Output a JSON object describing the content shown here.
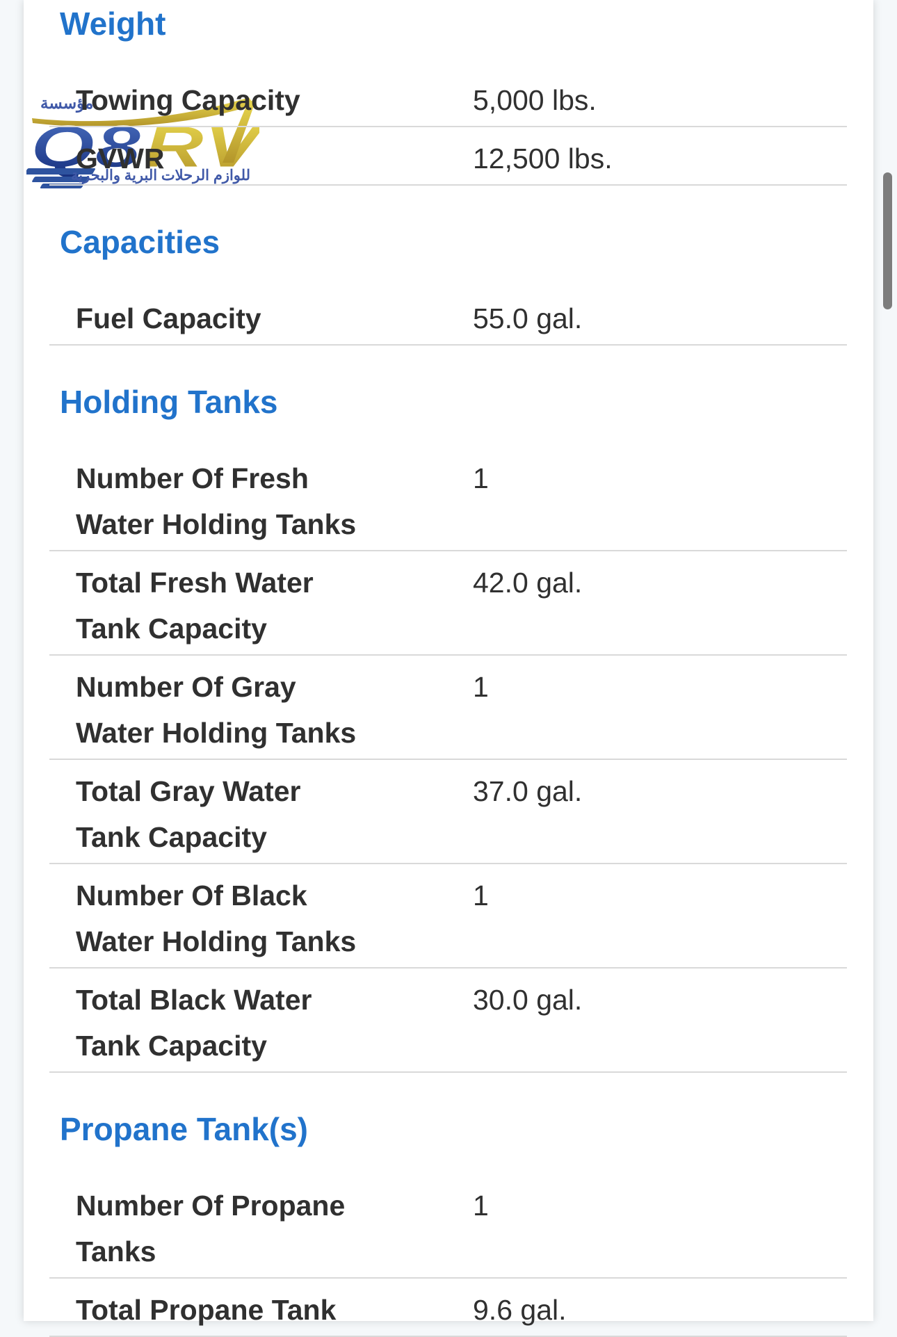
{
  "page": {
    "background_color": "#f5f8fa",
    "card_background": "#ffffff",
    "accent_blue": "#2173cb",
    "text_color": "#303030",
    "divider_color": "#d9d9d9"
  },
  "watermark": {
    "name": "Q8RV logo",
    "top_arabic": "مؤسسة",
    "letters_q8": "Q8",
    "letters_rv": "RV",
    "bottom_arabic": "للوازم الرحلات البرية والبحرية",
    "colors": {
      "blue": "#2e539f",
      "dark_blue": "#162f7d",
      "gold": "#d6b832"
    }
  },
  "sections": [
    {
      "title": "Weight",
      "rows": [
        {
          "label": "Towing Capacity",
          "label_lines": [
            "Towing Capacity"
          ],
          "value": "5,000 lbs."
        },
        {
          "label": "GVWR",
          "label_lines": [
            "GVWR"
          ],
          "value": "12,500 lbs."
        }
      ]
    },
    {
      "title": "Capacities",
      "rows": [
        {
          "label": "Fuel Capacity",
          "label_lines": [
            "Fuel Capacity"
          ],
          "value": "55.0 gal."
        }
      ]
    },
    {
      "title": "Holding Tanks",
      "rows": [
        {
          "label": "Number Of Fresh Water Holding Tanks",
          "label_lines": [
            "Number Of Fresh",
            "Water Holding Tanks"
          ],
          "value": "1"
        },
        {
          "label": "Total Fresh Water Tank Capacity",
          "label_lines": [
            "Total Fresh Water",
            "Tank Capacity"
          ],
          "value": "42.0 gal."
        },
        {
          "label": "Number Of Gray Water Holding Tanks",
          "label_lines": [
            "Number Of Gray",
            "Water Holding Tanks"
          ],
          "value": "1"
        },
        {
          "label": "Total Gray Water Tank Capacity",
          "label_lines": [
            "Total Gray Water",
            "Tank Capacity"
          ],
          "value": "37.0 gal."
        },
        {
          "label": "Number Of Black Water Holding Tanks",
          "label_lines": [
            "Number Of Black",
            "Water Holding Tanks"
          ],
          "value": "1"
        },
        {
          "label": "Total Black Water Tank Capacity",
          "label_lines": [
            "Total Black Water",
            "Tank Capacity"
          ],
          "value": "30.0 gal."
        }
      ]
    },
    {
      "title": "Propane Tank(s)",
      "rows": [
        {
          "label": "Number Of Propane Tanks",
          "label_lines": [
            "Number Of Propane",
            "Tanks"
          ],
          "value": "1"
        },
        {
          "label": "Total Propane Tank",
          "label_lines": [
            "Total Propane Tank"
          ],
          "value": "9.6 gal."
        }
      ]
    }
  ],
  "scrollbar": {
    "visible": true
  }
}
